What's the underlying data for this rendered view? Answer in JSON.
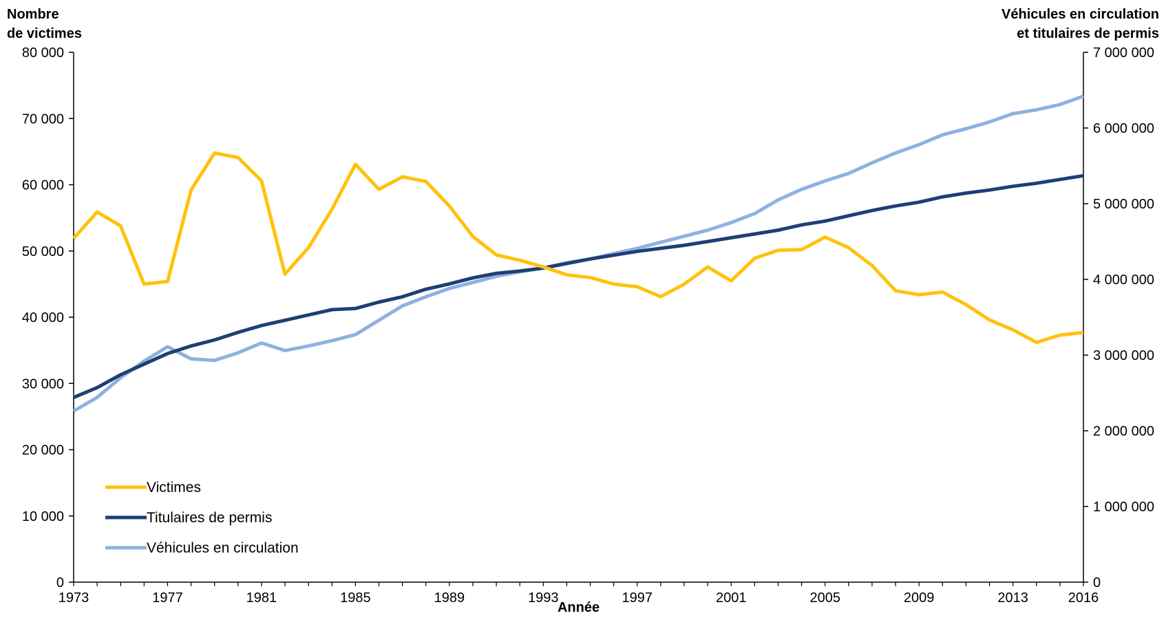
{
  "chart_data": {
    "type": "line",
    "title": "",
    "xlabel": "Année",
    "ylabel_left": [
      "Nombre",
      "de victimes"
    ],
    "ylabel_right": [
      "Véhicules en circulation",
      "et titulaires de permis"
    ],
    "x": [
      1973,
      1974,
      1975,
      1976,
      1977,
      1978,
      1979,
      1980,
      1981,
      1982,
      1983,
      1984,
      1985,
      1986,
      1987,
      1988,
      1989,
      1990,
      1991,
      1992,
      1993,
      1994,
      1995,
      1996,
      1997,
      1998,
      1999,
      2000,
      2001,
      2002,
      2003,
      2004,
      2005,
      2006,
      2007,
      2008,
      2009,
      2010,
      2011,
      2012,
      2013,
      2014,
      2015,
      2016
    ],
    "x_tick_labels": [
      "1973",
      "1977",
      "1981",
      "1985",
      "1989",
      "1993",
      "1997",
      "2001",
      "2005",
      "2009",
      "2013",
      "2016"
    ],
    "ylim_left": [
      0,
      80000
    ],
    "ylim_right": [
      0,
      7000000
    ],
    "y_left_tick_labels": [
      "0",
      "10 000",
      "20 000",
      "30 000",
      "40 000",
      "50 000",
      "60 000",
      "70 000",
      "80 000"
    ],
    "y_right_tick_labels": [
      "0",
      "1 000 000",
      "2 000 000",
      "3 000 000",
      "4 000 000",
      "5 000 000",
      "6 000 000",
      "7 000 000"
    ],
    "grid": false,
    "legend_position": "bottom-left",
    "series": [
      {
        "name": "Victimes",
        "axis": "left",
        "color": "#FFC20E",
        "values": [
          51900,
          55900,
          53800,
          45000,
          45400,
          59200,
          64800,
          64100,
          60600,
          46500,
          50500,
          56300,
          63100,
          59300,
          61200,
          60500,
          56800,
          52200,
          49400,
          48600,
          47600,
          46400,
          46000,
          45000,
          44600,
          43100,
          45000,
          47600,
          45500,
          48900,
          50100,
          50200,
          52100,
          50500,
          47800,
          44000,
          43400,
          43800,
          41900,
          39600,
          38100,
          36200,
          37300,
          37700
        ]
      },
      {
        "name": "Titulaires de permis",
        "axis": "right",
        "color": "#1F3F73",
        "values": [
          2440000,
          2570000,
          2740000,
          2880000,
          3020000,
          3120000,
          3200000,
          3300000,
          3390000,
          3460000,
          3530000,
          3600000,
          3615000,
          3700000,
          3770000,
          3870000,
          3940000,
          4020000,
          4080000,
          4110000,
          4150000,
          4210000,
          4270000,
          4320000,
          4370000,
          4410000,
          4450000,
          4500000,
          4550000,
          4600000,
          4650000,
          4720000,
          4770000,
          4840000,
          4910000,
          4970000,
          5020000,
          5090000,
          5140000,
          5180000,
          5230000,
          5270000,
          5320000,
          5370000
        ]
      },
      {
        "name": "Véhicules en circulation",
        "axis": "right",
        "color": "#8EB1E0",
        "values": [
          2260000,
          2440000,
          2700000,
          2920000,
          3110000,
          2950000,
          2930000,
          3030000,
          3160000,
          3060000,
          3120000,
          3190000,
          3270000,
          3460000,
          3650000,
          3770000,
          3880000,
          3960000,
          4040000,
          4100000,
          4150000,
          4220000,
          4270000,
          4340000,
          4410000,
          4490000,
          4570000,
          4650000,
          4750000,
          4870000,
          5050000,
          5190000,
          5300000,
          5400000,
          5540000,
          5670000,
          5780000,
          5910000,
          5990000,
          6080000,
          6190000,
          6240000,
          6310000,
          6420000
        ]
      }
    ]
  }
}
